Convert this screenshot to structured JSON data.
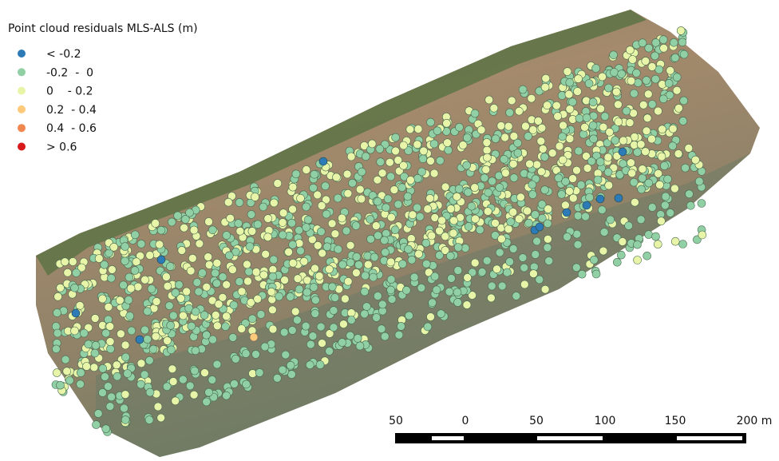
{
  "legend": {
    "title": "Point cloud residuals MLS-ALS (m)",
    "items": [
      {
        "label": "< -0.2",
        "color": "#2c7bb6"
      },
      {
        "label": "-0.2  -  0",
        "color": "#91cfa5"
      },
      {
        "label": "0    - 0.2",
        "color": "#e8f5a8"
      },
      {
        "label": "0.2  - 0.4",
        "color": "#fdc97a"
      },
      {
        "label": "0.4  - 0.6",
        "color": "#f0874f"
      },
      {
        "label": "> 0.6",
        "color": "#d7191c"
      }
    ]
  },
  "scale_bar": {
    "labels": [
      "50",
      "0",
      "50",
      "100",
      "150",
      "200 m"
    ]
  }
}
